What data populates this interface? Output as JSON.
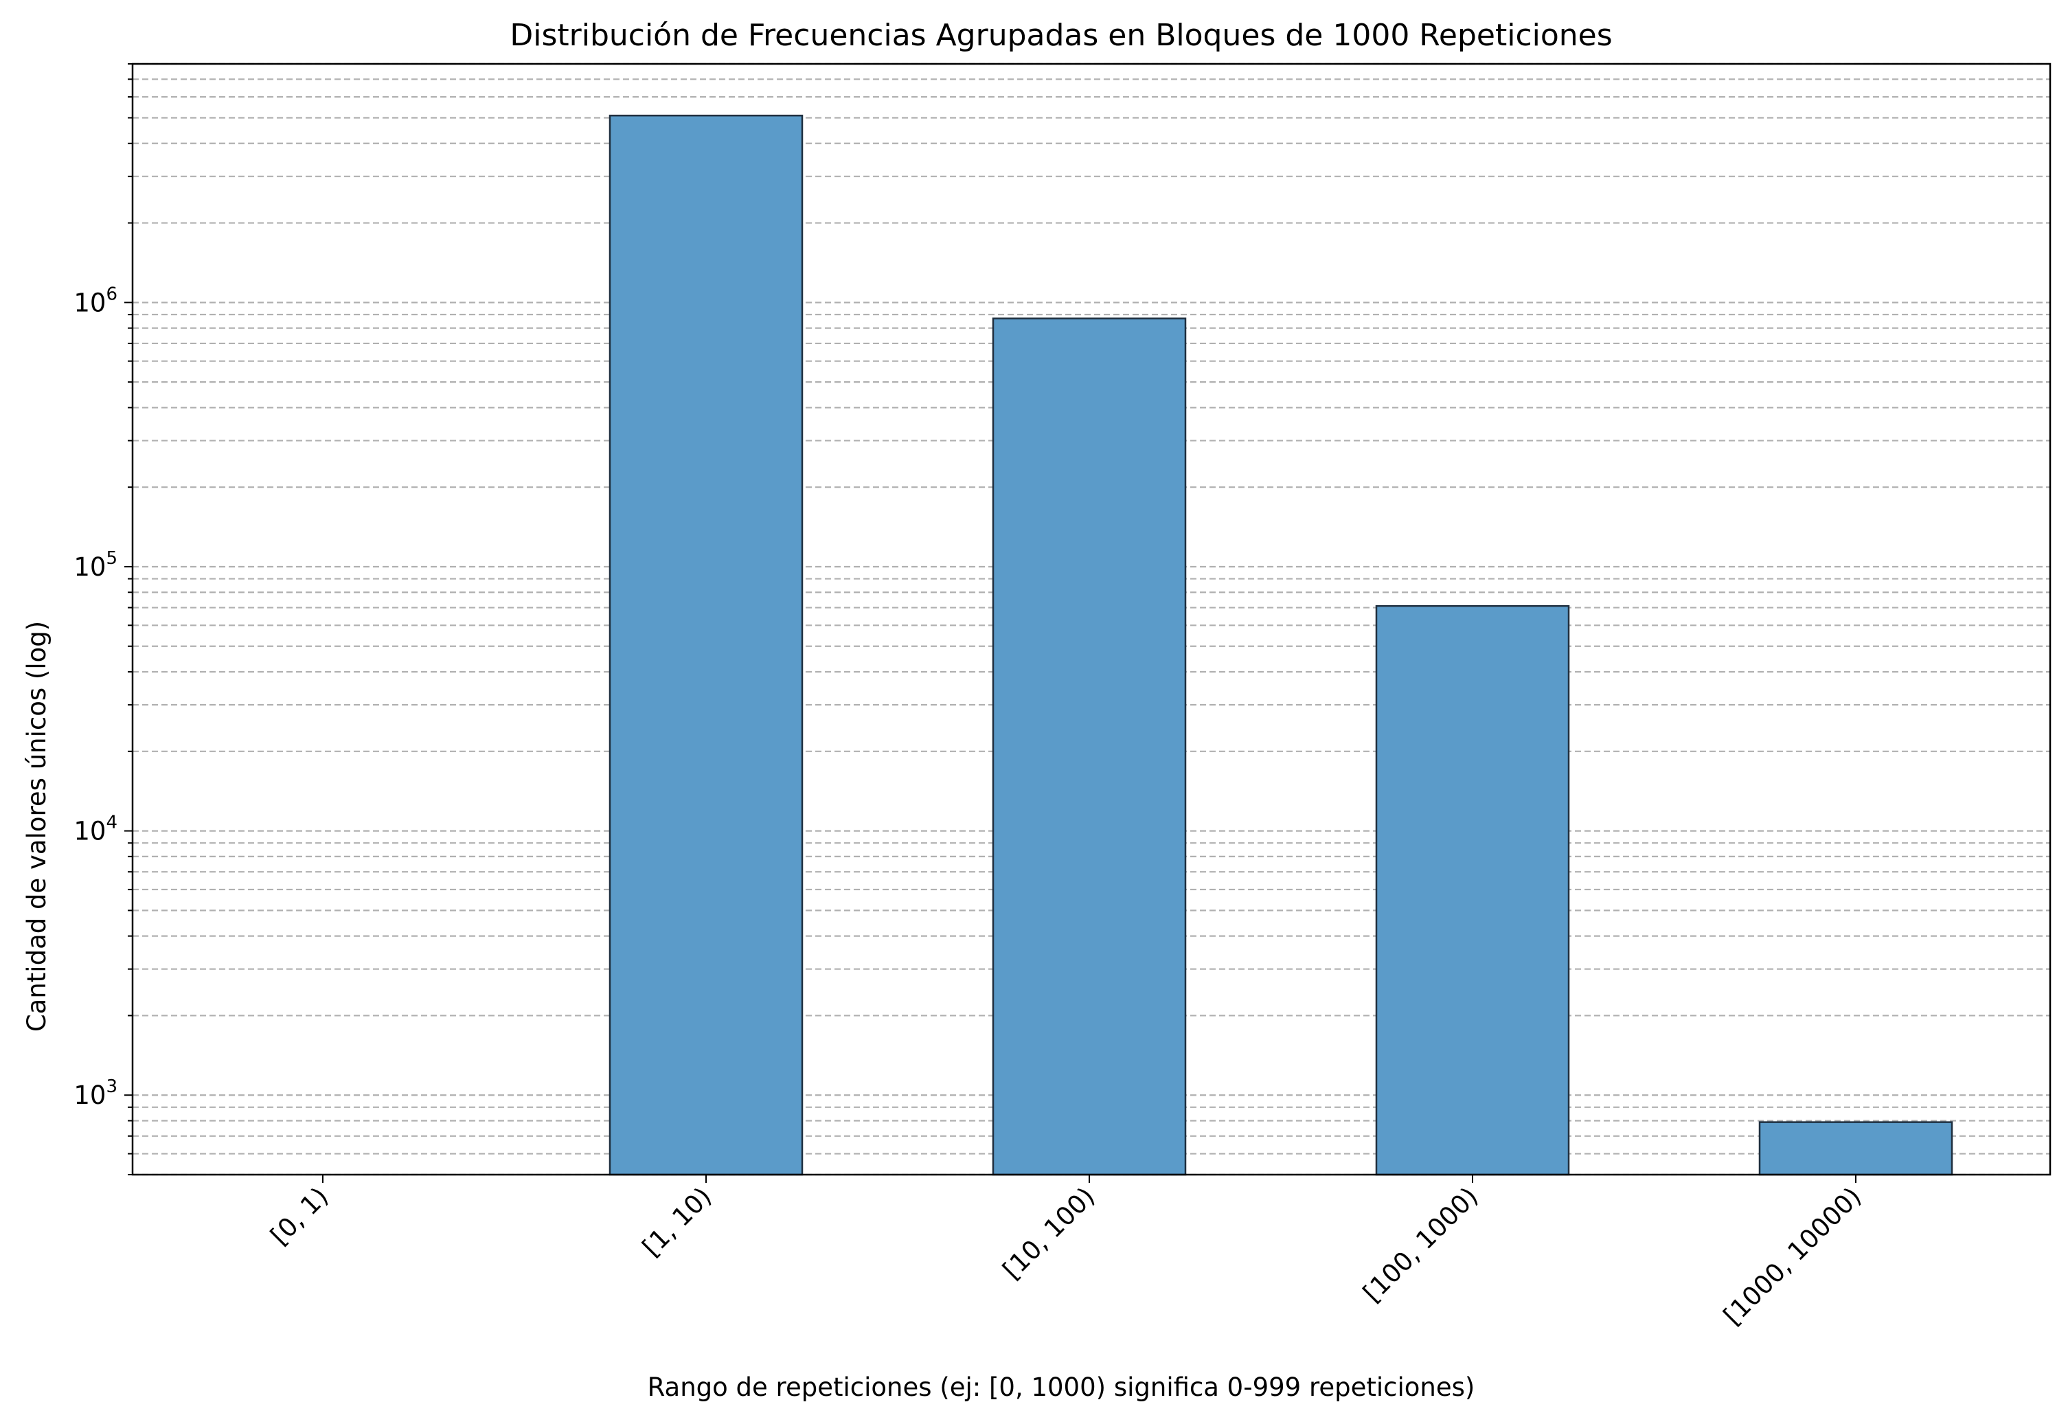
{
  "chart_data": {
    "type": "bar",
    "title": "Distribución de Frecuencias Agrupadas en Bloques de 1000 Repeticiones",
    "xlabel": "Rango de repeticiones (ej: [0, 1000) significa 0-999 repeticiones)",
    "ylabel": "Cantidad de valores únicos (log)",
    "yscale": "log",
    "ylim": [
      500,
      8000000
    ],
    "y_ticks": [
      {
        "value": 1000,
        "base": "10",
        "exp": "3"
      },
      {
        "value": 10000,
        "base": "10",
        "exp": "4"
      },
      {
        "value": 100000,
        "base": "10",
        "exp": "5"
      },
      {
        "value": 1000000,
        "base": "10",
        "exp": "6"
      }
    ],
    "grid": {
      "axis": "y",
      "which": "both",
      "style": "dashed"
    },
    "categories": [
      "[0, 1)",
      "[1, 10)",
      "[10, 100)",
      "[100, 1000)",
      "[1000, 10000)"
    ],
    "values": [
      0,
      5100000,
      870000,
      71000,
      790
    ],
    "bar_color": "#5b9bc9",
    "bar_edge_color": "#1f2f3f"
  }
}
